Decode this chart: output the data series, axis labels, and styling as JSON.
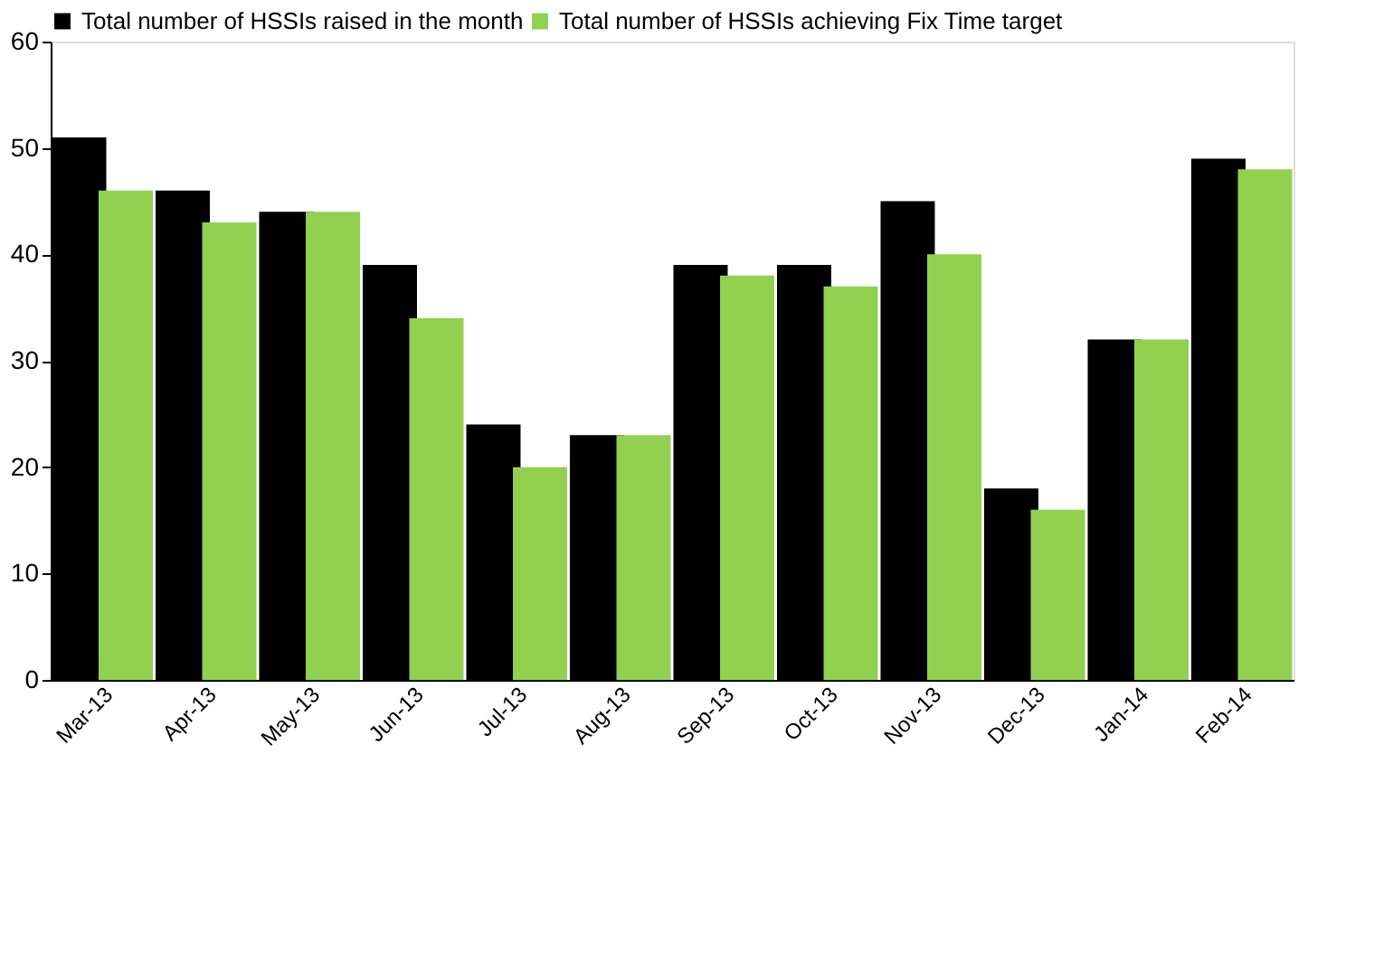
{
  "chart_data": {
    "type": "bar",
    "categories": [
      "Mar-13",
      "Apr-13",
      "May-13",
      "Jun-13",
      "Jul-13",
      "Aug-13",
      "Sep-13",
      "Oct-13",
      "Nov-13",
      "Dec-13",
      "Jan-14",
      "Feb-14"
    ],
    "series": [
      {
        "name": "Total number of HSSIs raised in the month",
        "color": "#000000",
        "values": [
          51,
          46,
          44,
          39,
          24,
          23,
          39,
          39,
          45,
          18,
          32,
          49
        ]
      },
      {
        "name": "Total number of HSSIs achieving  Fix Time target",
        "color": "#92d050",
        "values": [
          46,
          43,
          44,
          34,
          20,
          23,
          38,
          37,
          40,
          16,
          32,
          48
        ]
      }
    ],
    "ylim": [
      0,
      60
    ],
    "yticks": [
      0,
      10,
      20,
      30,
      40,
      50,
      60
    ],
    "grid": false,
    "legend": "top"
  }
}
